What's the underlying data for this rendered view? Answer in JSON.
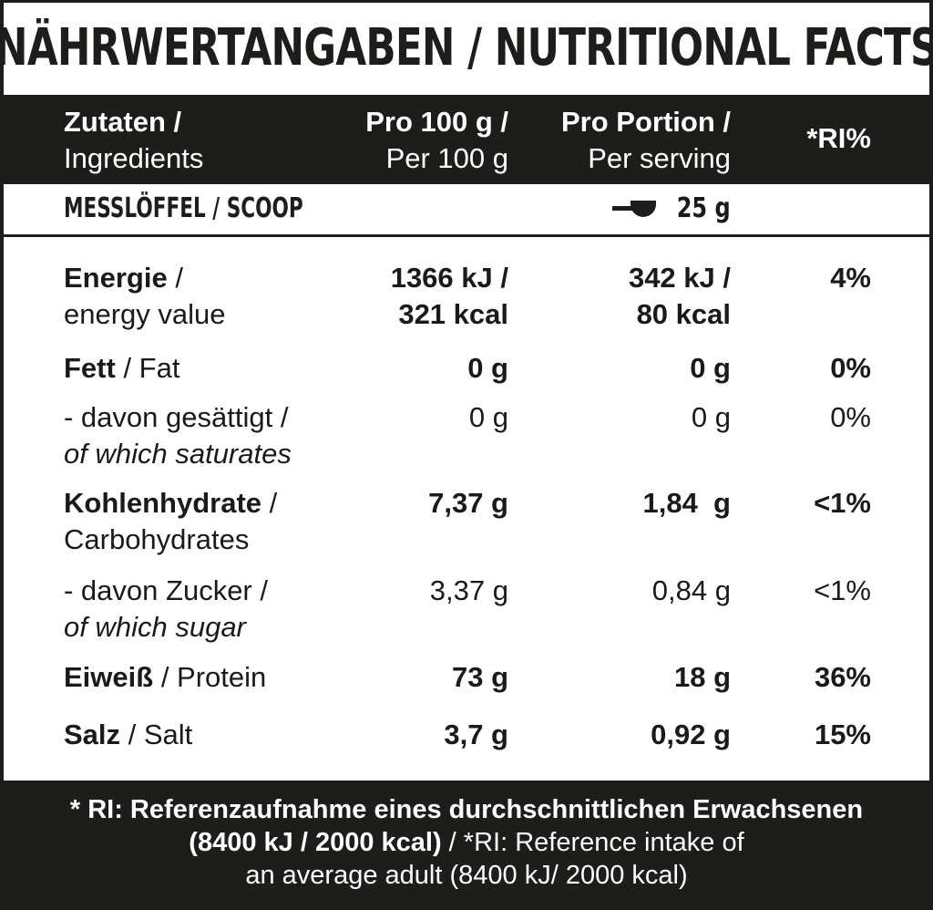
{
  "title": "NÄHRWERTANGABEN / NUTRITIONAL FACTS",
  "header": {
    "ingredients_de": "Zutaten /",
    "ingredients_en": "Ingredients",
    "per100_de": "Pro 100 g /",
    "per100_en": "Per 100 g",
    "serving_de": "Pro Portion /",
    "serving_en": "Per serving",
    "ri": "*RI%"
  },
  "scoop": {
    "label": "MESSLÖFFEL / SCOOP",
    "value": "25 g",
    "icon": "scoop-icon"
  },
  "rows": [
    {
      "de": "Energie",
      "sep": " /",
      "en": "energy value",
      "per100": [
        "1366 kJ /",
        "321 kcal"
      ],
      "serving": [
        "342 kJ /",
        "80 kcal"
      ],
      "ri": "4%"
    },
    {
      "de": "Fett",
      "sep": " / Fat",
      "per100": "0 g",
      "serving": "0 g",
      "ri": "0%"
    },
    {
      "de": "- davon gesättigt /",
      "en": "of which saturates",
      "per100": "0 g",
      "serving": "0 g",
      "ri": "0%"
    },
    {
      "de": "Kohlenhydrate",
      "sep": " /",
      "en": "Carbohydrates",
      "per100": "7,37 g",
      "serving": "1,84  g",
      "ri": "<1%"
    },
    {
      "de": "- davon Zucker /",
      "en": "of which sugar",
      "per100": "3,37 g",
      "serving": "0,84 g",
      "ri": "<1%"
    },
    {
      "de": "Eiweiß",
      "sep": " / Protein",
      "per100": "73 g",
      "serving": "18 g",
      "ri": "36%"
    },
    {
      "de": "Salz",
      "sep": " / Salt",
      "per100": "3,7 g",
      "serving": "0,92 g",
      "ri": "15%"
    }
  ],
  "footer": {
    "line1": "* RI: Referenzaufnahme eines durchschnittlichen Erwachsenen",
    "line2_bold": "(8400 kJ / 2000 kcal)",
    "line2_rest": " / *RI: Reference intake of",
    "line3": "an average adult (8400 kJ/ 2000 kcal)"
  }
}
